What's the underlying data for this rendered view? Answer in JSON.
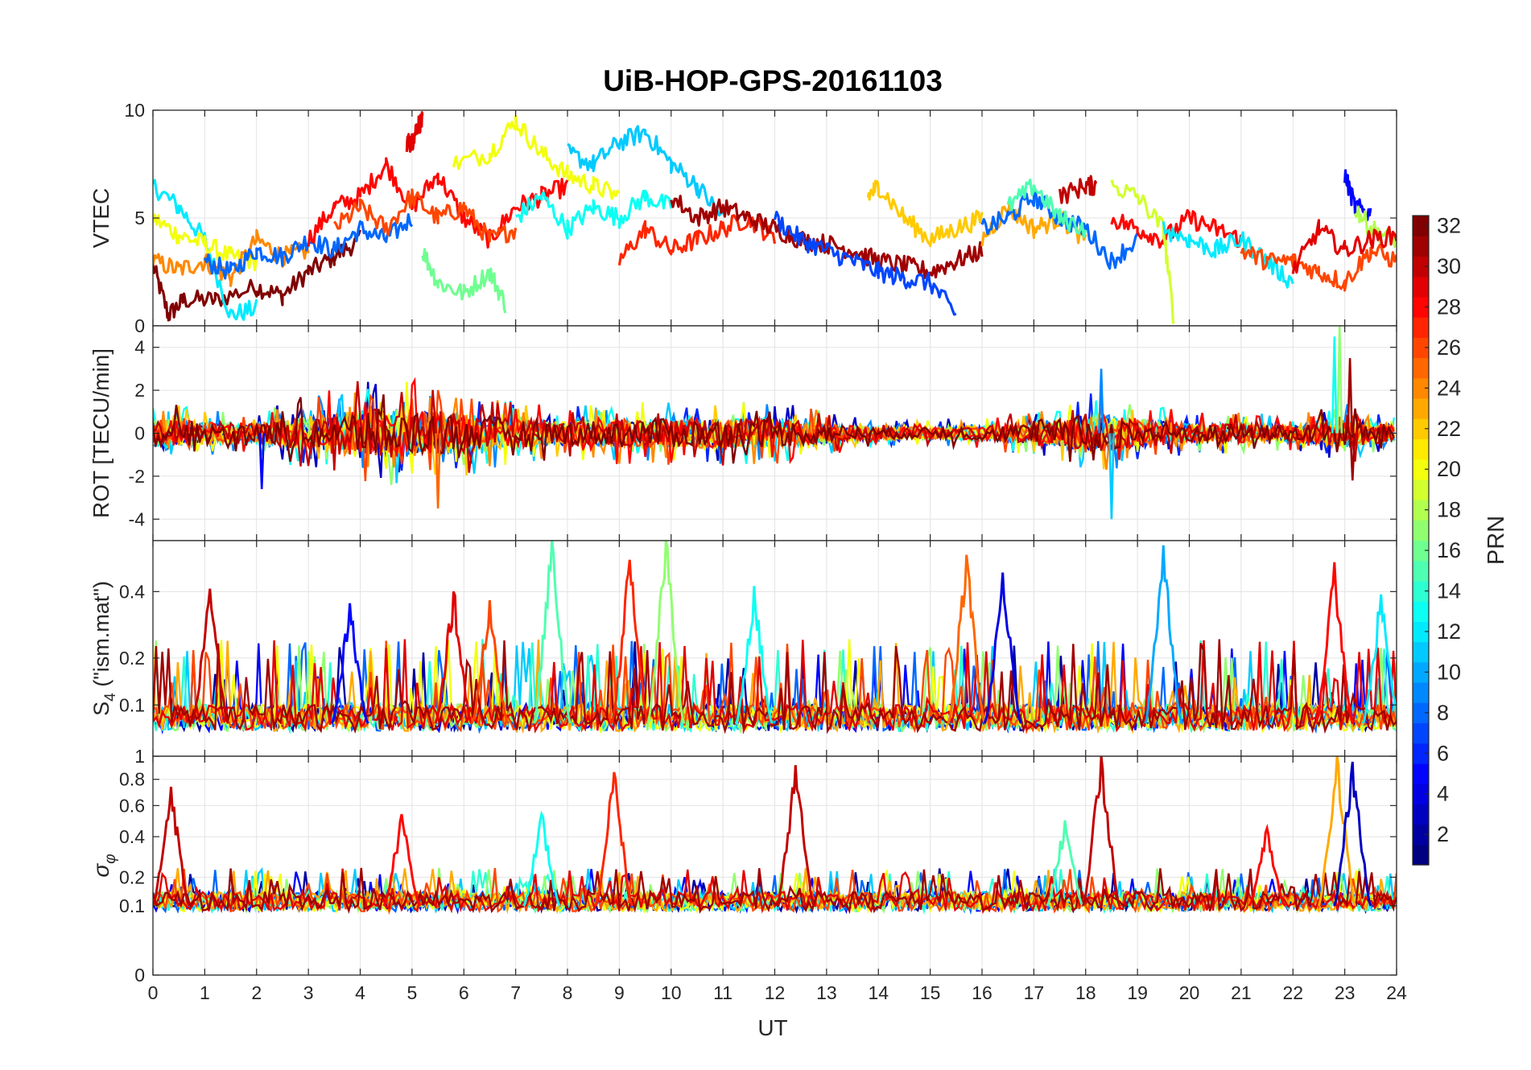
{
  "figure": {
    "title": "UiB-HOP-GPS-20161103",
    "xlabel": "UT",
    "xticks": [
      0,
      1,
      2,
      3,
      4,
      5,
      6,
      7,
      8,
      9,
      10,
      11,
      12,
      13,
      14,
      15,
      16,
      17,
      18,
      19,
      20,
      21,
      22,
      23,
      24
    ],
    "xlim": [
      0,
      24
    ]
  },
  "colorbar": {
    "label": "PRN",
    "range": [
      1,
      32
    ],
    "ticks": [
      2,
      4,
      6,
      8,
      10,
      12,
      14,
      16,
      18,
      20,
      22,
      24,
      26,
      28,
      30,
      32
    ],
    "colormap": "jet"
  },
  "chart_data": [
    {
      "type": "line",
      "panel": "vtec",
      "ylabel": "VTEC",
      "ylim": [
        0,
        10
      ],
      "yticks": [
        0,
        5,
        10
      ],
      "ytick_labels": [
        "0",
        "5",
        "10"
      ],
      "grid": true,
      "series_note_values": "one line per PRN; y values in TECU",
      "series": [
        {
          "prn": 32,
          "x": [
            0,
            0.3,
            0.6,
            1.2,
            2,
            2.5,
            3,
            3.5,
            4
          ],
          "y": [
            2.8,
            0.5,
            1.2,
            1.2,
            1.8,
            1.4,
            2.5,
            3.2,
            4.0
          ]
        },
        {
          "prn": 12,
          "x": [
            0,
            0.5,
            1,
            1.5,
            2
          ],
          "y": [
            6.5,
            5.5,
            4.0,
            0.5,
            0.8
          ]
        },
        {
          "prn": 20,
          "x": [
            0,
            0.5,
            1,
            1.5,
            2
          ],
          "y": [
            5.0,
            4.2,
            3.8,
            3.2,
            3.0
          ]
        },
        {
          "prn": 24,
          "x": [
            0,
            0.5,
            1,
            1.5,
            2,
            2.5,
            3
          ],
          "y": [
            3.0,
            2.6,
            3.0,
            2.2,
            4.0,
            3.2,
            3.5
          ]
        },
        {
          "prn": 8,
          "x": [
            1,
            1.5,
            2,
            2.5,
            3,
            3.5,
            4,
            4.5,
            5
          ],
          "y": [
            3.0,
            2.5,
            3.5,
            3.2,
            4.0,
            3.5,
            4.5,
            4.0,
            5.0
          ]
        },
        {
          "prn": 28,
          "x": [
            3,
            3.5,
            4,
            4.5,
            5,
            5.5,
            6,
            6.5,
            7,
            7.5,
            8
          ],
          "y": [
            4.0,
            5.5,
            6.0,
            7.5,
            5.5,
            7.0,
            5.0,
            4.0,
            5.5,
            6.0,
            6.5
          ]
        },
        {
          "prn": 26,
          "x": [
            3.5,
            4,
            4.5,
            5,
            5.5,
            6,
            6.5,
            7
          ],
          "y": [
            4.5,
            5.5,
            4.5,
            6.0,
            5.0,
            5.5,
            4.0,
            4.5
          ]
        },
        {
          "prn": 16,
          "x": [
            5.2,
            5.5,
            6,
            6.5,
            6.8
          ],
          "y": [
            3.5,
            2.0,
            1.5,
            2.5,
            1.0
          ]
        },
        {
          "prn": 20,
          "x": [
            5.8,
            6.5,
            7,
            7.5,
            8,
            8.5,
            9
          ],
          "y": [
            7.5,
            8.0,
            9.5,
            8.0,
            7.0,
            6.5,
            6.0
          ]
        },
        {
          "prn": 29,
          "x": [
            4.9,
            5.0,
            5.1,
            5.2
          ],
          "y": [
            8.5,
            8.5,
            9.3,
            9.5
          ]
        },
        {
          "prn": 11,
          "x": [
            8,
            8.5,
            9,
            9.5,
            10,
            10.5,
            11
          ],
          "y": [
            8.0,
            7.5,
            8.5,
            9.0,
            7.5,
            6.5,
            5.0
          ]
        },
        {
          "prn": 13,
          "x": [
            7,
            7.5,
            8,
            8.5,
            9,
            9.5,
            10
          ],
          "y": [
            5.0,
            6.0,
            4.5,
            5.5,
            5.0,
            6.0,
            5.5
          ]
        },
        {
          "prn": 27,
          "x": [
            9,
            9.5,
            10,
            10.5,
            11,
            11.5,
            12
          ],
          "y": [
            3.0,
            4.5,
            3.5,
            4.0,
            4.5,
            5.0,
            4.0
          ]
        },
        {
          "prn": 31,
          "x": [
            10,
            10.5,
            11,
            11.5,
            12,
            12.5,
            13,
            13.5,
            14,
            14.5,
            15,
            15.5,
            16
          ],
          "y": [
            6.0,
            5.0,
            5.5,
            5.0,
            4.5,
            4.0,
            3.8,
            3.5,
            3.0,
            2.8,
            2.5,
            3.0,
            3.5
          ]
        },
        {
          "prn": 7,
          "x": [
            12,
            12.5,
            13,
            13.5,
            14,
            14.5,
            15,
            15.5
          ],
          "y": [
            5.0,
            4.0,
            3.5,
            3.0,
            2.5,
            2.2,
            2.0,
            0.5
          ]
        },
        {
          "prn": 22,
          "x": [
            13.8,
            14,
            14.5,
            15,
            15.5,
            16
          ],
          "y": [
            6.0,
            6.5,
            5.0,
            4.0,
            4.5,
            5.0
          ]
        },
        {
          "prn": 23,
          "x": [
            16,
            16.5,
            17,
            17.5,
            18
          ],
          "y": [
            4.0,
            5.5,
            4.5,
            5.0,
            4.0
          ]
        },
        {
          "prn": 8,
          "x": [
            16,
            16.5,
            17,
            17.5,
            18,
            18.5,
            19
          ],
          "y": [
            4.5,
            5.0,
            6.0,
            5.0,
            4.5,
            3.0,
            4.0
          ]
        },
        {
          "prn": 15,
          "x": [
            16.5,
            17,
            17.5,
            18
          ],
          "y": [
            5.5,
            6.5,
            5.0,
            4.5
          ]
        },
        {
          "prn": 30,
          "x": [
            17.5,
            18,
            18.2
          ],
          "y": [
            6.0,
            6.5,
            6.5
          ]
        },
        {
          "prn": 28,
          "x": [
            18.5,
            19,
            19.5,
            20,
            20.5,
            21
          ],
          "y": [
            5.0,
            4.5,
            4.0,
            5.0,
            4.5,
            4.0
          ]
        },
        {
          "prn": 19,
          "x": [
            18.5,
            19,
            19.5,
            19.7
          ],
          "y": [
            6.5,
            6.0,
            4.5,
            0.3
          ]
        },
        {
          "prn": 12,
          "x": [
            19.5,
            20,
            20.5,
            21,
            21.5,
            22
          ],
          "y": [
            4.5,
            4.0,
            3.5,
            4.0,
            3.0,
            2.0
          ]
        },
        {
          "prn": 26,
          "x": [
            21,
            21.5,
            22,
            22.5,
            23,
            23.5,
            24
          ],
          "y": [
            3.5,
            3.0,
            3.0,
            2.5,
            2.0,
            3.5,
            3.0
          ]
        },
        {
          "prn": 5,
          "x": [
            23,
            23.2,
            23.5
          ],
          "y": [
            7.0,
            5.5,
            5.2
          ]
        },
        {
          "prn": 18,
          "x": [
            23.2,
            23.5,
            24
          ],
          "y": [
            5.5,
            4.5,
            4.0
          ]
        },
        {
          "prn": 29,
          "x": [
            22,
            22.5,
            23,
            23.5,
            24
          ],
          "y": [
            2.5,
            4.5,
            3.5,
            4.0,
            4.2
          ]
        }
      ]
    },
    {
      "type": "line",
      "panel": "rot",
      "ylabel": "ROT [TECU/min]",
      "ylim": [
        -5,
        5
      ],
      "yticks": [
        -4,
        -2,
        0,
        2,
        4
      ],
      "ytick_labels": [
        "-4",
        "-2",
        "0",
        "2",
        "4"
      ],
      "grid": true,
      "amplitude_profile": {
        "x": [
          0,
          1,
          2,
          3,
          4,
          5,
          6,
          7,
          8,
          9,
          10,
          11,
          12,
          13,
          14,
          15,
          16,
          17,
          18,
          19,
          20,
          21,
          22,
          23,
          24
        ],
        "max_abs_rot": [
          1.5,
          1.2,
          1.0,
          1.8,
          2.5,
          2.5,
          2.0,
          1.5,
          1.2,
          1.5,
          1.5,
          1.5,
          1.5,
          1.0,
          0.6,
          0.6,
          0.8,
          1.0,
          2.0,
          1.5,
          1.0,
          1.0,
          0.8,
          1.5,
          0.8
        ]
      },
      "spikes": [
        {
          "prn": 13,
          "x": 22.8,
          "y": 4.5
        },
        {
          "prn": 17,
          "x": 22.9,
          "y": 5.0
        },
        {
          "prn": 31,
          "x": 23.1,
          "y": 3.5
        },
        {
          "prn": 31,
          "x": 23.15,
          "y": -2.2
        },
        {
          "prn": 11,
          "x": 18.5,
          "y": -4.0
        },
        {
          "prn": 9,
          "x": 18.3,
          "y": 3.0
        },
        {
          "prn": 25,
          "x": 5.5,
          "y": -3.5
        },
        {
          "prn": 5,
          "x": 2.1,
          "y": -2.6
        }
      ]
    },
    {
      "type": "line",
      "panel": "s4",
      "ylabel": "S4 (\"ism.mat\")",
      "ylim": [
        0.03,
        0.6
      ],
      "yticks": [
        0.1,
        0.2,
        0.4
      ],
      "ytick_labels": [
        "0.1",
        "0.2",
        "0.4"
      ],
      "grid": true,
      "baseline": 0.07,
      "peaks": [
        {
          "prn": 30,
          "x": 1.1,
          "y": 0.41
        },
        {
          "prn": 15,
          "x": 7.7,
          "y": 0.6
        },
        {
          "prn": 27,
          "x": 9.2,
          "y": 0.52
        },
        {
          "prn": 17,
          "x": 9.9,
          "y": 0.6
        },
        {
          "prn": 25,
          "x": 15.7,
          "y": 0.54
        },
        {
          "prn": 10,
          "x": 19.5,
          "y": 0.58
        },
        {
          "prn": 28,
          "x": 22.8,
          "y": 0.51
        },
        {
          "prn": 12,
          "x": 23.7,
          "y": 0.39
        },
        {
          "prn": 29,
          "x": 5.8,
          "y": 0.4
        },
        {
          "prn": 26,
          "x": 6.5,
          "y": 0.37
        },
        {
          "prn": 5,
          "x": 3.8,
          "y": 0.36
        },
        {
          "prn": 13,
          "x": 11.6,
          "y": 0.42
        },
        {
          "prn": 4,
          "x": 16.4,
          "y": 0.47
        }
      ]
    },
    {
      "type": "line",
      "panel": "sigma_phi",
      "ylabel": "σφ",
      "ylim": [
        0,
        1
      ],
      "yticks": [
        0,
        0.1,
        0.2,
        0.4,
        0.6,
        0.8,
        1
      ],
      "ytick_labels": [
        "0",
        "0.1",
        "0.2",
        "0.4",
        "0.6",
        "0.8",
        "1"
      ],
      "grid": true,
      "baseline": 0.1,
      "peaks": [
        {
          "prn": 30,
          "x": 0.35,
          "y": 0.74
        },
        {
          "prn": 28,
          "x": 4.8,
          "y": 0.54
        },
        {
          "prn": 27,
          "x": 8.9,
          "y": 0.86
        },
        {
          "prn": 30,
          "x": 12.4,
          "y": 0.92
        },
        {
          "prn": 15,
          "x": 17.6,
          "y": 0.5
        },
        {
          "prn": 30,
          "x": 18.3,
          "y": 1.0
        },
        {
          "prn": 23,
          "x": 22.85,
          "y": 1.0
        },
        {
          "prn": 3,
          "x": 23.15,
          "y": 0.95
        },
        {
          "prn": 13,
          "x": 7.5,
          "y": 0.54
        },
        {
          "prn": 28,
          "x": 21.5,
          "y": 0.45
        }
      ]
    }
  ]
}
